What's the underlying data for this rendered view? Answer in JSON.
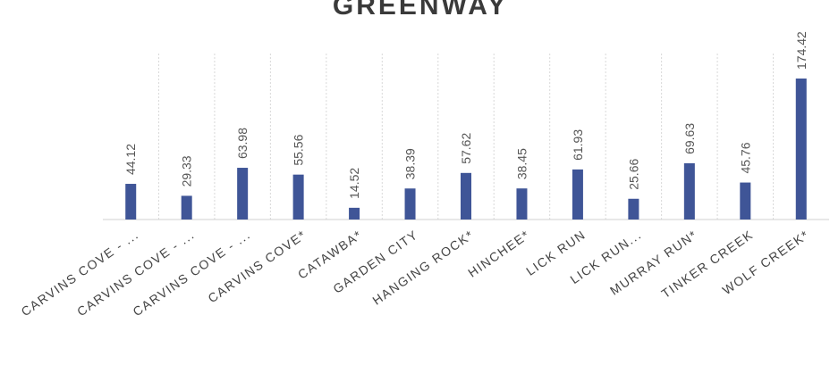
{
  "chart_data": {
    "type": "bar",
    "title": "GREENWAY",
    "categories": [
      "CARVINS COVE - ...",
      "CARVINS COVE - ...",
      "CARVINS COVE - ...",
      "CARVINS COVE*",
      "CATAWBA*",
      "GARDEN CITY",
      "HANGING ROCK*",
      "HINCHEE*",
      "LICK RUN",
      "LICK RUN...",
      "MURRAY RUN*",
      "TINKER CREEK",
      "WOLF CREEK*"
    ],
    "values": [
      44.12,
      29.33,
      63.98,
      55.56,
      14.52,
      38.39,
      57.62,
      38.45,
      61.93,
      25.66,
      69.63,
      45.76,
      174.42
    ],
    "color": "#3f5597"
  }
}
